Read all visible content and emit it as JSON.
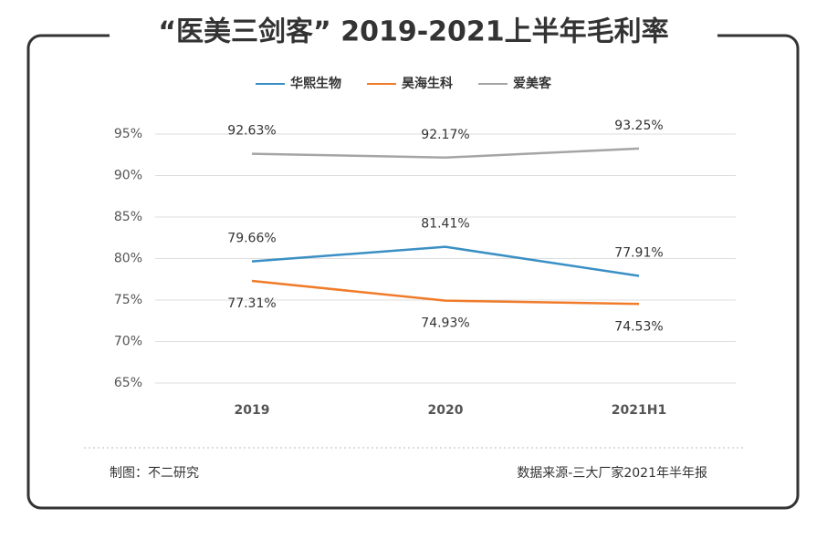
{
  "chart_data": {
    "type": "line",
    "title": "“医美三剑客” 2019-2021上半年毛利率",
    "categories": [
      "2019",
      "2020",
      "2021H1"
    ],
    "series": [
      {
        "name": "华熙生物",
        "color": "#3a8fc4",
        "values": [
          79.66,
          81.41,
          77.91
        ],
        "value_labels": [
          "79.66%",
          "81.41%",
          "77.91%"
        ]
      },
      {
        "name": "昊海生科",
        "color": "#f07b2a",
        "values": [
          77.31,
          74.93,
          74.53
        ],
        "value_labels": [
          "77.31%",
          "74.93%",
          "74.53%"
        ]
      },
      {
        "name": "爱美客",
        "color": "#a5a5a5",
        "values": [
          92.63,
          92.17,
          93.25
        ],
        "value_labels": [
          "92.63%",
          "92.17%",
          "93.25%"
        ]
      }
    ],
    "ylim": [
      65,
      95
    ],
    "yticks": [
      {
        "value": 65,
        "label": "65%"
      },
      {
        "value": 70,
        "label": "70%"
      },
      {
        "value": 75,
        "label": "75%"
      },
      {
        "value": 80,
        "label": "80%"
      },
      {
        "value": 85,
        "label": "85%"
      },
      {
        "value": 90,
        "label": "90%"
      },
      {
        "value": 95,
        "label": "95%"
      }
    ],
    "grid": true,
    "legend": "top"
  },
  "footer": {
    "left": "制图：不二研究",
    "right": "数据来源-三大厂家2021年半年报"
  }
}
